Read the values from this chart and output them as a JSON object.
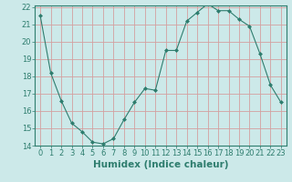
{
  "x": [
    0,
    1,
    2,
    3,
    4,
    5,
    6,
    7,
    8,
    9,
    10,
    11,
    12,
    13,
    14,
    15,
    16,
    17,
    18,
    19,
    20,
    21,
    22,
    23
  ],
  "y": [
    21.5,
    18.2,
    16.6,
    15.3,
    14.8,
    14.2,
    14.1,
    14.4,
    15.5,
    16.5,
    17.3,
    17.2,
    19.5,
    19.5,
    21.2,
    21.7,
    22.2,
    21.8,
    21.8,
    21.3,
    20.9,
    19.3,
    17.5,
    16.5
  ],
  "ylim": [
    14,
    22
  ],
  "xlim": [
    -0.5,
    23.5
  ],
  "yticks": [
    14,
    15,
    16,
    17,
    18,
    19,
    20,
    21,
    22
  ],
  "xticks": [
    0,
    1,
    2,
    3,
    4,
    5,
    6,
    7,
    8,
    9,
    10,
    11,
    12,
    13,
    14,
    15,
    16,
    17,
    18,
    19,
    20,
    21,
    22,
    23
  ],
  "xlabel": "Humidex (Indice chaleur)",
  "line_color": "#2e7d6e",
  "marker": "D",
  "marker_size": 2,
  "bg_color": "#cce9e9",
  "grid_color": "#d4a0a0",
  "tick_label_fontsize": 6,
  "xlabel_fontsize": 7.5
}
